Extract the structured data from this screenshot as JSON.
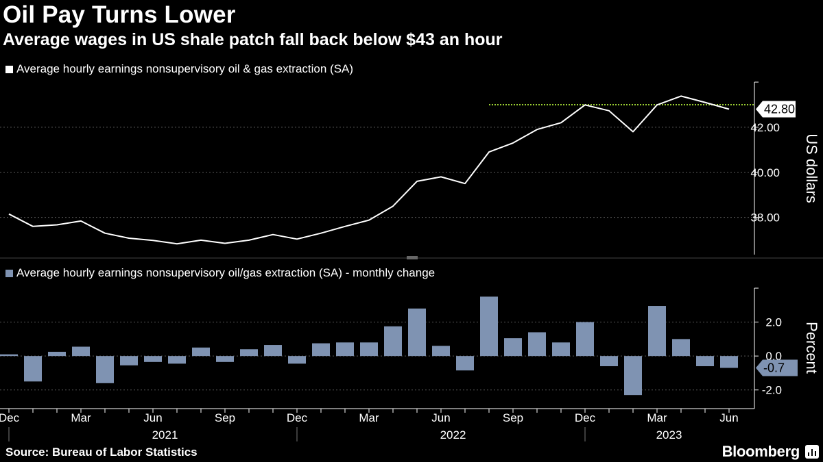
{
  "header": {
    "title": "Oil Pay Turns Lower",
    "subtitle": "Average wages in US shale patch fall back below $43 an hour"
  },
  "footer": {
    "source": "Source: Bureau of Labor Statistics",
    "brand": "Bloomberg"
  },
  "colors": {
    "background": "#000000",
    "line": "#ffffff",
    "bar": "#7f93b2",
    "reference": "#9acd32",
    "grid": "#5a5a5a"
  },
  "chart_data": [
    {
      "type": "line",
      "legend": "Average hourly earnings nonsupervisory oil & gas extraction (SA)",
      "ylabel": "US dollars",
      "ylim": [
        36.35,
        44.0
      ],
      "yticks": [
        38.0,
        40.0,
        42.0
      ],
      "ytick_labels": [
        "38.00",
        "40.00",
        "42.00"
      ],
      "last_value_label": "42.80",
      "last_value": 42.8,
      "reference_line": {
        "value": 43.0,
        "start_index": 20
      },
      "x": [
        "2020-12",
        "2021-01",
        "2021-02",
        "2021-03",
        "2021-04",
        "2021-05",
        "2021-06",
        "2021-07",
        "2021-08",
        "2021-09",
        "2021-10",
        "2021-11",
        "2021-12",
        "2022-01",
        "2022-02",
        "2022-03",
        "2022-04",
        "2022-05",
        "2022-06",
        "2022-07",
        "2022-08",
        "2022-09",
        "2022-10",
        "2022-11",
        "2022-12",
        "2023-01",
        "2023-02",
        "2023-03",
        "2023-04",
        "2023-05",
        "2023-06"
      ],
      "values": [
        38.15,
        37.6,
        37.67,
        37.84,
        37.3,
        37.08,
        36.98,
        36.83,
        36.99,
        36.85,
        36.99,
        37.24,
        37.04,
        37.3,
        37.6,
        37.88,
        38.5,
        39.6,
        39.8,
        39.5,
        40.9,
        41.3,
        41.9,
        42.2,
        42.99,
        42.73,
        41.8,
        42.99,
        43.38,
        43.1,
        42.8
      ]
    },
    {
      "type": "bar",
      "legend": "Average hourly earnings nonsupervisory oil/gas extraction (SA) - monthly change",
      "ylabel": "Percent",
      "ylim": [
        -3.1,
        4.0
      ],
      "yticks": [
        -2.0,
        0.0,
        2.0
      ],
      "ytick_labels": [
        "-2.0",
        "0.0",
        "2.0"
      ],
      "last_value_label": "-0.7",
      "last_value": -0.7,
      "x": [
        "2020-12",
        "2021-01",
        "2021-02",
        "2021-03",
        "2021-04",
        "2021-05",
        "2021-06",
        "2021-07",
        "2021-08",
        "2021-09",
        "2021-10",
        "2021-11",
        "2021-12",
        "2022-01",
        "2022-02",
        "2022-03",
        "2022-04",
        "2022-05",
        "2022-06",
        "2022-07",
        "2022-08",
        "2022-09",
        "2022-10",
        "2022-11",
        "2022-12",
        "2023-01",
        "2023-02",
        "2023-03",
        "2023-04",
        "2023-05",
        "2023-06"
      ],
      "values": [
        0.1,
        -1.5,
        0.25,
        0.55,
        -1.6,
        -0.55,
        -0.35,
        -0.45,
        0.5,
        -0.35,
        0.4,
        0.65,
        -0.45,
        0.75,
        0.8,
        0.8,
        1.75,
        2.8,
        0.6,
        -0.85,
        3.5,
        1.05,
        1.4,
        0.8,
        2.0,
        -0.6,
        -2.3,
        2.95,
        1.0,
        -0.6,
        -0.7
      ]
    }
  ],
  "x_axis": {
    "month_ticks": [
      {
        "index": 0,
        "label": "Dec"
      },
      {
        "index": 3,
        "label": "Mar"
      },
      {
        "index": 6,
        "label": "Jun"
      },
      {
        "index": 9,
        "label": "Sep"
      },
      {
        "index": 12,
        "label": "Dec"
      },
      {
        "index": 15,
        "label": "Mar"
      },
      {
        "index": 18,
        "label": "Jun"
      },
      {
        "index": 21,
        "label": "Sep"
      },
      {
        "index": 24,
        "label": "Dec"
      },
      {
        "index": 27,
        "label": "Mar"
      },
      {
        "index": 30,
        "label": "Jun"
      }
    ],
    "year_labels": [
      {
        "center_index": 6.5,
        "label": "2021"
      },
      {
        "center_index": 18.5,
        "label": "2022"
      },
      {
        "center_index": 27.5,
        "label": "2023"
      }
    ],
    "year_dividers": [
      0,
      12,
      24
    ]
  }
}
